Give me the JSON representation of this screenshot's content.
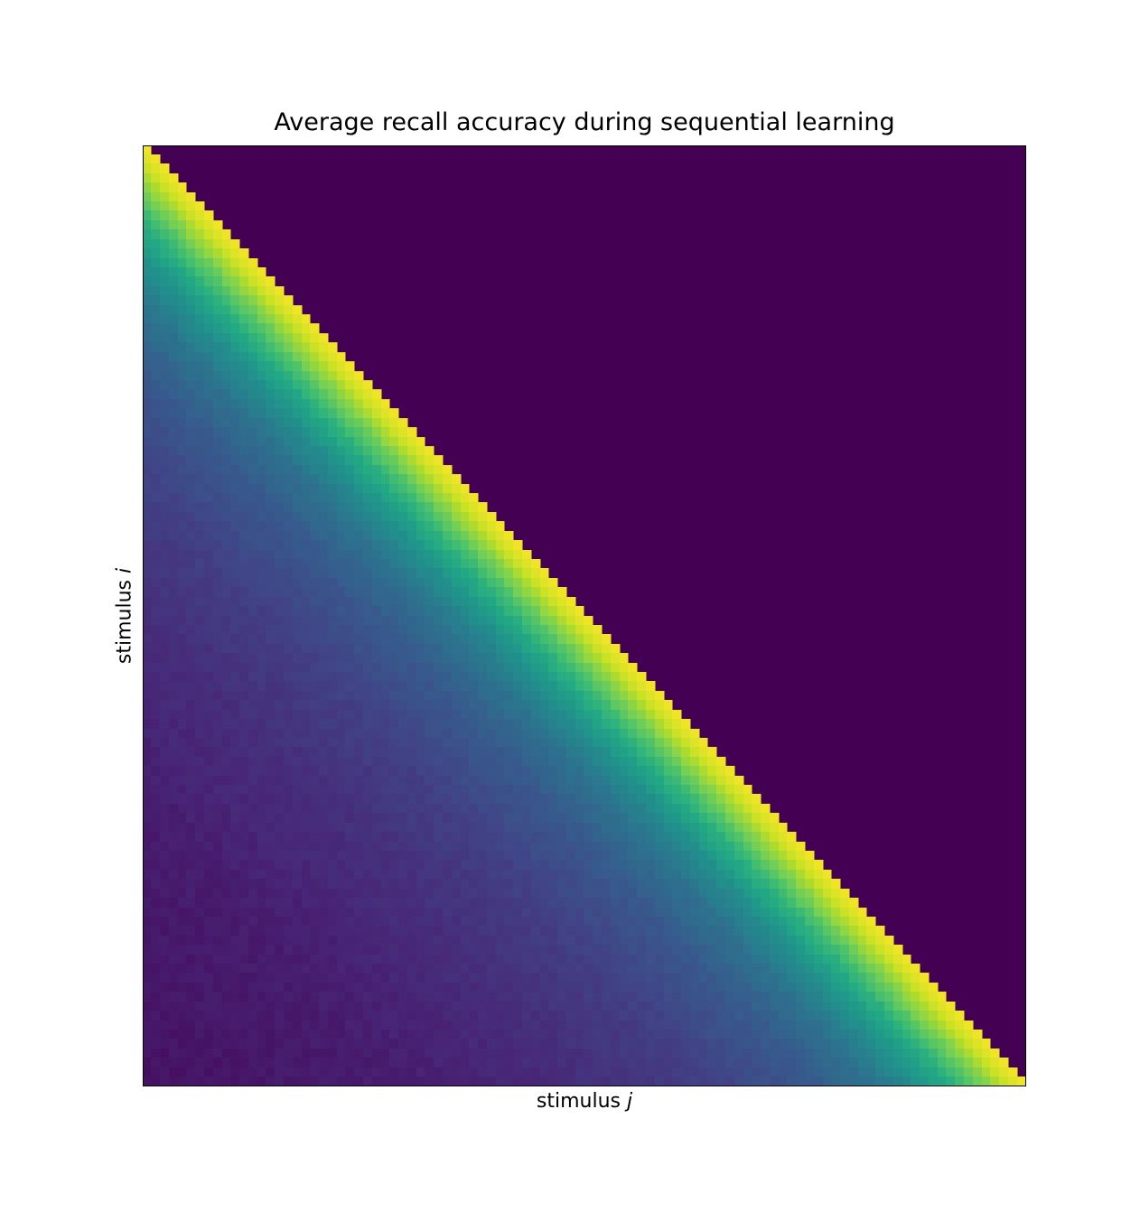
{
  "chart_data": {
    "type": "heatmap",
    "title": "Average recall accuracy during sequential learning",
    "xlabel": {
      "text": "stimulus ",
      "var": "j"
    },
    "ylabel": {
      "text": "stimulus ",
      "var": "i"
    },
    "grid": false,
    "legend": "none",
    "colormap": "viridis",
    "n_rows": 100,
    "n_cols": 100,
    "value_range": [
      0,
      1
    ],
    "structure": "lower-triangular: cells with j > i have value 0; cell value decays with lag (i - j), starting near 1 on the diagonal and reaching roughly 0.05 at the largest lags",
    "value_profile": [
      {
        "lag": 0,
        "value": 0.98
      },
      {
        "lag": 2,
        "value": 0.92
      },
      {
        "lag": 5,
        "value": 0.78
      },
      {
        "lag": 8,
        "value": 0.64
      },
      {
        "lag": 12,
        "value": 0.5
      },
      {
        "lag": 17,
        "value": 0.38
      },
      {
        "lag": 24,
        "value": 0.28
      },
      {
        "lag": 35,
        "value": 0.19
      },
      {
        "lag": 50,
        "value": 0.13
      },
      {
        "lag": 70,
        "value": 0.08
      },
      {
        "lag": 99,
        "value": 0.05
      }
    ],
    "colors": {
      "empty": "#440154",
      "high": "#fde725",
      "mid": "#21918c",
      "low": "#482878"
    }
  }
}
